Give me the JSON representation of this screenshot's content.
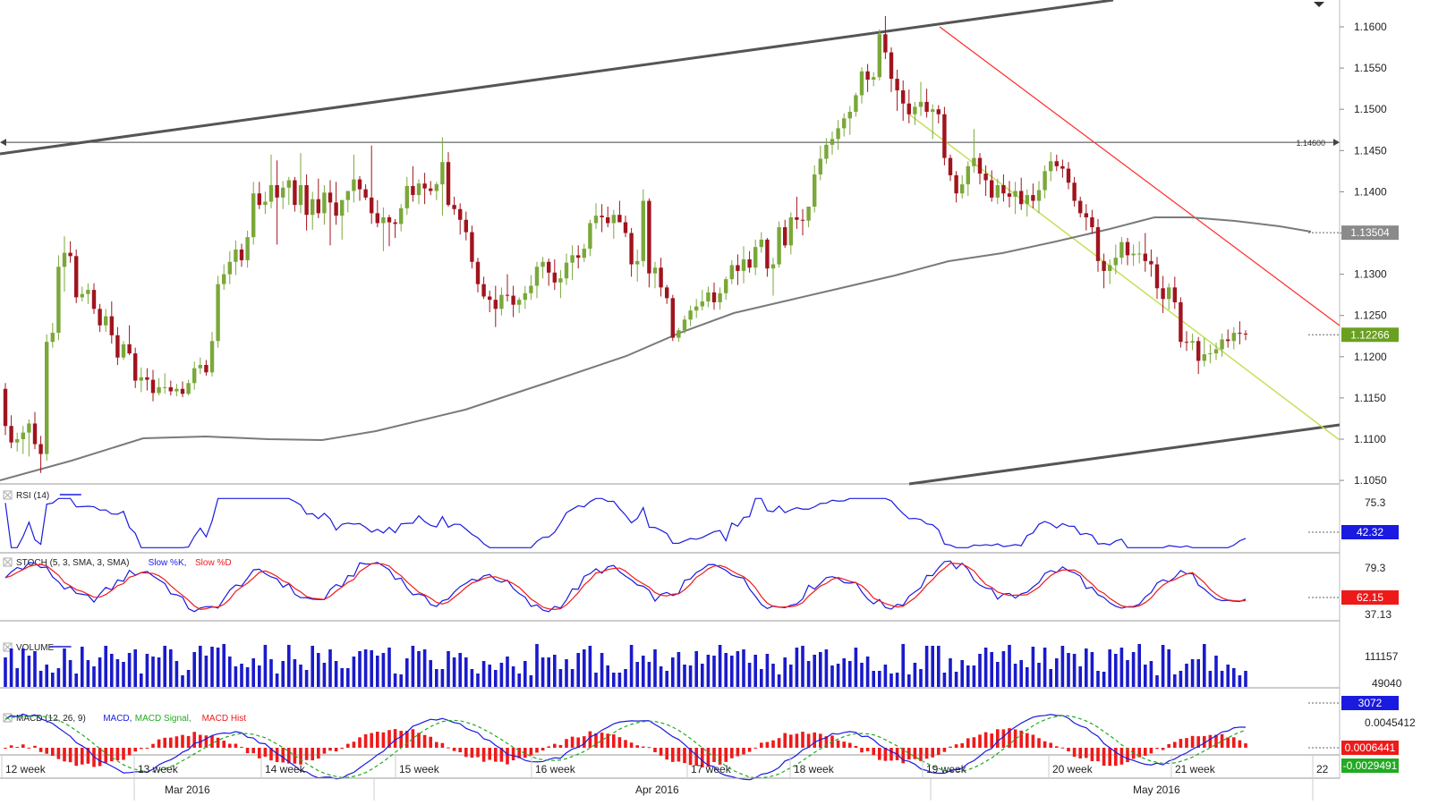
{
  "chart_data": {
    "type": "candlestick",
    "symbol": "",
    "colors": {
      "up": "#7aa83a",
      "down": "#a0141e",
      "ma": "#7a7a7a",
      "channel": "#555555",
      "red_trend": "#ff2a2a",
      "yellow_trend": "#c6df5a",
      "rsi": "#1a1ae0",
      "stoch_k": "#1a1ae0",
      "stoch_d": "#ee1a1a",
      "volume": "#1a1acc",
      "macd": "#1a1ae0",
      "macd_signal": "#22aa22",
      "macd_hist": "#ee1a1a",
      "last_price_bg": "#6aa020",
      "ma_label_bg": "#8a8a8a",
      "rsi_label_bg": "#1a1ae0",
      "stoch_label_bg": "#ee1a1a",
      "volume_label_bg": "#1a1ae0",
      "macd_label_bg": "#ee1a1a",
      "macd_signal_label_bg": "#22aa22"
    },
    "price_axis": {
      "ticks": [
        "1.1600",
        "1.1550",
        "1.1500",
        "1.1450",
        "1.1400",
        "1.1350",
        "1.1300",
        "1.1250",
        "1.1200",
        "1.1150",
        "1.1100",
        "1.1050"
      ],
      "ylim": [
        1.1042,
        1.1615
      ]
    },
    "horizontal_level": {
      "value": 1.146,
      "label": "1.14600"
    },
    "labels": {
      "ma": "1.13504",
      "last_price": "1.12266"
    },
    "candles": [
      [
        1.1161,
        1.1168,
        1.1105,
        1.1116
      ],
      [
        1.1116,
        1.1129,
        1.1089,
        1.1096
      ],
      [
        1.1096,
        1.1108,
        1.1085,
        1.11
      ],
      [
        1.11,
        1.1116,
        1.1082,
        1.1108
      ],
      [
        1.1108,
        1.1124,
        1.1079,
        1.1119
      ],
      [
        1.1119,
        1.1133,
        1.1088,
        1.1094
      ],
      [
        1.1094,
        1.1104,
        1.1059,
        1.1082
      ],
      [
        1.1082,
        1.1227,
        1.1074,
        1.1218
      ],
      [
        1.1218,
        1.1241,
        1.1211,
        1.1229
      ],
      [
        1.1229,
        1.1323,
        1.122,
        1.1309
      ],
      [
        1.1309,
        1.1346,
        1.1279,
        1.1326
      ],
      [
        1.1326,
        1.134,
        1.1314,
        1.1322
      ],
      [
        1.1322,
        1.133,
        1.1265,
        1.1272
      ],
      [
        1.1272,
        1.1285,
        1.1267,
        1.1276
      ],
      [
        1.1276,
        1.1289,
        1.1264,
        1.1281
      ],
      [
        1.1281,
        1.1289,
        1.1252,
        1.1258
      ],
      [
        1.1258,
        1.1264,
        1.123,
        1.1238
      ],
      [
        1.1238,
        1.1258,
        1.123,
        1.1249
      ],
      [
        1.1249,
        1.1267,
        1.1216,
        1.1226
      ],
      [
        1.1226,
        1.1236,
        1.119,
        1.1199
      ],
      [
        1.1199,
        1.1219,
        1.1196,
        1.1215
      ],
      [
        1.1215,
        1.1238,
        1.1202,
        1.1204
      ],
      [
        1.1204,
        1.1211,
        1.1162,
        1.1171
      ],
      [
        1.1171,
        1.1187,
        1.1157,
        1.1175
      ],
      [
        1.1175,
        1.1186,
        1.1159,
        1.1172
      ],
      [
        1.1172,
        1.1184,
        1.1146,
        1.1156
      ],
      [
        1.1156,
        1.1174,
        1.1153,
        1.1163
      ],
      [
        1.1163,
        1.118,
        1.1155,
        1.1163
      ],
      [
        1.1163,
        1.1171,
        1.1153,
        1.1158
      ],
      [
        1.1158,
        1.1167,
        1.1152,
        1.1161
      ],
      [
        1.1161,
        1.117,
        1.1151,
        1.1155
      ],
      [
        1.1155,
        1.1172,
        1.1153,
        1.1168
      ],
      [
        1.1168,
        1.1194,
        1.116,
        1.1186
      ],
      [
        1.1186,
        1.1199,
        1.1179,
        1.119
      ],
      [
        1.119,
        1.1196,
        1.1177,
        1.1181
      ],
      [
        1.1181,
        1.123,
        1.1176,
        1.1219
      ],
      [
        1.1219,
        1.1298,
        1.1211,
        1.1288
      ],
      [
        1.1288,
        1.1312,
        1.1281,
        1.13
      ],
      [
        1.13,
        1.1328,
        1.1288,
        1.1315
      ],
      [
        1.1315,
        1.1341,
        1.1299,
        1.133
      ],
      [
        1.133,
        1.1337,
        1.1309,
        1.1317
      ],
      [
        1.1317,
        1.1353,
        1.1308,
        1.1345
      ],
      [
        1.1345,
        1.1412,
        1.1336,
        1.1398
      ],
      [
        1.1398,
        1.1412,
        1.1379,
        1.1384
      ],
      [
        1.1384,
        1.14,
        1.1373,
        1.1388
      ],
      [
        1.1388,
        1.1445,
        1.138,
        1.1408
      ],
      [
        1.1408,
        1.1438,
        1.1336,
        1.1393
      ],
      [
        1.1393,
        1.1413,
        1.1379,
        1.1405
      ],
      [
        1.1405,
        1.1418,
        1.1384,
        1.1414
      ],
      [
        1.1414,
        1.1418,
        1.1376,
        1.1384
      ],
      [
        1.1384,
        1.1447,
        1.1374,
        1.1408
      ],
      [
        1.1408,
        1.1421,
        1.1353,
        1.1372
      ],
      [
        1.1372,
        1.14,
        1.1354,
        1.1391
      ],
      [
        1.1391,
        1.1416,
        1.1368,
        1.1374
      ],
      [
        1.1374,
        1.1408,
        1.136,
        1.1399
      ],
      [
        1.1399,
        1.1414,
        1.1335,
        1.1387
      ],
      [
        1.1387,
        1.1412,
        1.136,
        1.1371
      ],
      [
        1.1371,
        1.139,
        1.1342,
        1.139
      ],
      [
        1.139,
        1.1401,
        1.1375,
        1.1401
      ],
      [
        1.1401,
        1.1445,
        1.1387,
        1.1415
      ],
      [
        1.1415,
        1.1419,
        1.1389,
        1.1403
      ],
      [
        1.1403,
        1.1409,
        1.139,
        1.1393
      ],
      [
        1.1393,
        1.1456,
        1.1361,
        1.1374
      ],
      [
        1.1374,
        1.139,
        1.1357,
        1.1362
      ],
      [
        1.1362,
        1.1381,
        1.1328,
        1.1369
      ],
      [
        1.1369,
        1.1372,
        1.1334,
        1.1363
      ],
      [
        1.1363,
        1.1367,
        1.1344,
        1.1361
      ],
      [
        1.1361,
        1.1385,
        1.1352,
        1.138
      ],
      [
        1.138,
        1.1418,
        1.1372,
        1.1407
      ],
      [
        1.1407,
        1.1431,
        1.1388,
        1.1396
      ],
      [
        1.1396,
        1.1415,
        1.1385,
        1.141
      ],
      [
        1.141,
        1.1423,
        1.1385,
        1.1404
      ],
      [
        1.1404,
        1.1413,
        1.1396,
        1.1401
      ],
      [
        1.1401,
        1.1412,
        1.139,
        1.1409
      ],
      [
        1.1409,
        1.1466,
        1.1371,
        1.1436
      ],
      [
        1.1436,
        1.1448,
        1.1382,
        1.1384
      ],
      [
        1.1384,
        1.1394,
        1.1372,
        1.1379
      ],
      [
        1.1379,
        1.1386,
        1.1348,
        1.1366
      ],
      [
        1.1366,
        1.1376,
        1.1341,
        1.1351
      ],
      [
        1.1351,
        1.1359,
        1.1307,
        1.1315
      ],
      [
        1.1315,
        1.132,
        1.1278,
        1.1288
      ],
      [
        1.1288,
        1.1297,
        1.127,
        1.1273
      ],
      [
        1.1273,
        1.128,
        1.1254,
        1.1269
      ],
      [
        1.1269,
        1.1286,
        1.1236,
        1.1258
      ],
      [
        1.1258,
        1.1284,
        1.125,
        1.1275
      ],
      [
        1.1275,
        1.13,
        1.1267,
        1.1274
      ],
      [
        1.1274,
        1.1286,
        1.1248,
        1.1263
      ],
      [
        1.1263,
        1.1272,
        1.1253,
        1.1269
      ],
      [
        1.1269,
        1.1286,
        1.1258,
        1.1277
      ],
      [
        1.1277,
        1.1299,
        1.1269,
        1.1286
      ],
      [
        1.1286,
        1.1315,
        1.1271,
        1.1309
      ],
      [
        1.1309,
        1.1321,
        1.1295,
        1.1315
      ],
      [
        1.1315,
        1.1319,
        1.1286,
        1.1302
      ],
      [
        1.1302,
        1.1318,
        1.1281,
        1.129
      ],
      [
        1.129,
        1.1305,
        1.1271,
        1.1295
      ],
      [
        1.1295,
        1.1325,
        1.1287,
        1.1314
      ],
      [
        1.1314,
        1.1335,
        1.1293,
        1.1323
      ],
      [
        1.1323,
        1.1335,
        1.1307,
        1.132
      ],
      [
        1.132,
        1.1337,
        1.1315,
        1.1331
      ],
      [
        1.1331,
        1.1366,
        1.1322,
        1.1362
      ],
      [
        1.1362,
        1.1386,
        1.1355,
        1.1371
      ],
      [
        1.1371,
        1.1385,
        1.1351,
        1.1369
      ],
      [
        1.1369,
        1.1382,
        1.1357,
        1.1362
      ],
      [
        1.1362,
        1.1378,
        1.1343,
        1.1372
      ],
      [
        1.1372,
        1.1389,
        1.1364,
        1.1363
      ],
      [
        1.1363,
        1.1371,
        1.1345,
        1.135
      ],
      [
        1.135,
        1.1356,
        1.1297,
        1.1312
      ],
      [
        1.1312,
        1.133,
        1.1291,
        1.1316
      ],
      [
        1.1316,
        1.1403,
        1.1309,
        1.1389
      ],
      [
        1.1389,
        1.1392,
        1.1284,
        1.1301
      ],
      [
        1.1301,
        1.1315,
        1.1283,
        1.1308
      ],
      [
        1.1308,
        1.132,
        1.1273,
        1.1284
      ],
      [
        1.1284,
        1.1287,
        1.1264,
        1.1271
      ],
      [
        1.1271,
        1.1275,
        1.1219,
        1.1223
      ],
      [
        1.1223,
        1.1235,
        1.1218,
        1.1232
      ],
      [
        1.1232,
        1.125,
        1.1228,
        1.1245
      ],
      [
        1.1245,
        1.1262,
        1.1237,
        1.1256
      ],
      [
        1.1256,
        1.127,
        1.1247,
        1.1261
      ],
      [
        1.1261,
        1.1281,
        1.1256,
        1.1267
      ],
      [
        1.1267,
        1.1285,
        1.126,
        1.1278
      ],
      [
        1.1278,
        1.129,
        1.1257,
        1.1266
      ],
      [
        1.1266,
        1.1284,
        1.1257,
        1.1277
      ],
      [
        1.1277,
        1.1297,
        1.1269,
        1.1294
      ],
      [
        1.1294,
        1.1317,
        1.1288,
        1.1311
      ],
      [
        1.1311,
        1.1324,
        1.1287,
        1.1304
      ],
      [
        1.1304,
        1.1334,
        1.1289,
        1.1318
      ],
      [
        1.1318,
        1.1328,
        1.1302,
        1.1308
      ],
      [
        1.1308,
        1.1342,
        1.1299,
        1.1333
      ],
      [
        1.1333,
        1.1351,
        1.1326,
        1.1342
      ],
      [
        1.1342,
        1.1344,
        1.1297,
        1.1307
      ],
      [
        1.1307,
        1.132,
        1.1274,
        1.1312
      ],
      [
        1.1312,
        1.1364,
        1.1308,
        1.1357
      ],
      [
        1.1357,
        1.1366,
        1.1332,
        1.1335
      ],
      [
        1.1335,
        1.1375,
        1.1324,
        1.1369
      ],
      [
        1.1369,
        1.1394,
        1.1355,
        1.1366
      ],
      [
        1.1366,
        1.1379,
        1.1347,
        1.1365
      ],
      [
        1.1365,
        1.1382,
        1.1357,
        1.1382
      ],
      [
        1.1382,
        1.1432,
        1.1375,
        1.1421
      ],
      [
        1.1421,
        1.1456,
        1.1414,
        1.144
      ],
      [
        1.144,
        1.1465,
        1.1434,
        1.1457
      ],
      [
        1.1457,
        1.1473,
        1.1445,
        1.1464
      ],
      [
        1.1464,
        1.1487,
        1.1451,
        1.1477
      ],
      [
        1.1477,
        1.1495,
        1.1467,
        1.1489
      ],
      [
        1.1489,
        1.1504,
        1.1469,
        1.1497
      ],
      [
        1.1497,
        1.152,
        1.1491,
        1.1517
      ],
      [
        1.1517,
        1.1551,
        1.1507,
        1.1546
      ],
      [
        1.1546,
        1.1555,
        1.1521,
        1.1536
      ],
      [
        1.1536,
        1.1545,
        1.1528,
        1.1539
      ],
      [
        1.1539,
        1.1597,
        1.1535,
        1.1591
      ],
      [
        1.1591,
        1.1613,
        1.1561,
        1.1569
      ],
      [
        1.1569,
        1.1575,
        1.1521,
        1.1537
      ],
      [
        1.1537,
        1.1548,
        1.1498,
        1.1523
      ],
      [
        1.1523,
        1.1535,
        1.1486,
        1.1507
      ],
      [
        1.1507,
        1.1524,
        1.1483,
        1.1494
      ],
      [
        1.1494,
        1.1509,
        1.1481,
        1.1503
      ],
      [
        1.1503,
        1.1533,
        1.1492,
        1.1509
      ],
      [
        1.1509,
        1.1525,
        1.149,
        1.1497
      ],
      [
        1.1497,
        1.1506,
        1.1464,
        1.15
      ],
      [
        1.15,
        1.1505,
        1.1483,
        1.1494
      ],
      [
        1.1494,
        1.1503,
        1.1432,
        1.1441
      ],
      [
        1.1441,
        1.1445,
        1.1413,
        1.142
      ],
      [
        1.142,
        1.1425,
        1.1387,
        1.1398
      ],
      [
        1.1398,
        1.142,
        1.1392,
        1.1409
      ],
      [
        1.1409,
        1.1437,
        1.1395,
        1.1431
      ],
      [
        1.1431,
        1.1476,
        1.1423,
        1.1441
      ],
      [
        1.1441,
        1.1447,
        1.1409,
        1.1422
      ],
      [
        1.1422,
        1.1432,
        1.1395,
        1.1414
      ],
      [
        1.1414,
        1.1426,
        1.1388,
        1.1393
      ],
      [
        1.1393,
        1.1416,
        1.1385,
        1.1408
      ],
      [
        1.1408,
        1.1421,
        1.1388,
        1.1398
      ],
      [
        1.1398,
        1.1413,
        1.1381,
        1.1394
      ],
      [
        1.1394,
        1.1412,
        1.1373,
        1.1401
      ],
      [
        1.1401,
        1.1417,
        1.1378,
        1.1385
      ],
      [
        1.1385,
        1.1403,
        1.137,
        1.1396
      ],
      [
        1.1396,
        1.141,
        1.138,
        1.1389
      ],
      [
        1.1389,
        1.1413,
        1.1374,
        1.1402
      ],
      [
        1.1402,
        1.1432,
        1.1392,
        1.1425
      ],
      [
        1.1425,
        1.1448,
        1.1413,
        1.1437
      ],
      [
        1.1437,
        1.1445,
        1.1425,
        1.1431
      ],
      [
        1.1431,
        1.1439,
        1.1417,
        1.1428
      ],
      [
        1.1428,
        1.1436,
        1.1403,
        1.1411
      ],
      [
        1.1411,
        1.1418,
        1.1382,
        1.1389
      ],
      [
        1.1389,
        1.1394,
        1.1369,
        1.1374
      ],
      [
        1.1374,
        1.1385,
        1.1353,
        1.1369
      ],
      [
        1.1369,
        1.1378,
        1.1349,
        1.1357
      ],
      [
        1.1357,
        1.1367,
        1.1303,
        1.1316
      ],
      [
        1.1316,
        1.1325,
        1.1283,
        1.1304
      ],
      [
        1.1304,
        1.1318,
        1.1288,
        1.1311
      ],
      [
        1.1311,
        1.1336,
        1.13,
        1.132
      ],
      [
        1.132,
        1.1345,
        1.1312,
        1.1339
      ],
      [
        1.1339,
        1.1344,
        1.1311,
        1.1323
      ],
      [
        1.1323,
        1.1336,
        1.131,
        1.1325
      ],
      [
        1.1325,
        1.134,
        1.1313,
        1.1325
      ],
      [
        1.1325,
        1.135,
        1.1303,
        1.1316
      ],
      [
        1.1316,
        1.133,
        1.1297,
        1.1312
      ],
      [
        1.1312,
        1.1321,
        1.127,
        1.1283
      ],
      [
        1.1283,
        1.1298,
        1.1253,
        1.127
      ],
      [
        1.127,
        1.1289,
        1.1257,
        1.1284
      ],
      [
        1.1284,
        1.1297,
        1.1258,
        1.1266
      ],
      [
        1.1266,
        1.1272,
        1.1211,
        1.1218
      ],
      [
        1.1218,
        1.1231,
        1.1207,
        1.1217
      ],
      [
        1.1217,
        1.1228,
        1.1208,
        1.1219
      ],
      [
        1.1219,
        1.1224,
        1.1179,
        1.1195
      ],
      [
        1.1195,
        1.1223,
        1.1188,
        1.1203
      ],
      [
        1.1203,
        1.1215,
        1.1192,
        1.1204
      ],
      [
        1.1204,
        1.1217,
        1.1196,
        1.1209
      ],
      [
        1.1209,
        1.1228,
        1.12,
        1.1221
      ],
      [
        1.1221,
        1.1233,
        1.1211,
        1.1219
      ],
      [
        1.1219,
        1.1236,
        1.1209,
        1.1229
      ],
      [
        1.1229,
        1.1243,
        1.1215,
        1.1228
      ],
      [
        1.1228,
        1.1232,
        1.122,
        1.1227
      ]
    ],
    "ma_label": "1.13504",
    "indicators": [
      {
        "name": "RSI (14)",
        "axis_ticks": [
          "75.3"
        ],
        "current": "42.32"
      },
      {
        "name": "STOCH (5, 3, SMA, 3, SMA)",
        "series": [
          "Slow %K",
          "Slow %D"
        ],
        "axis_ticks": [
          "79.3",
          "37.13"
        ],
        "current": "62.15"
      },
      {
        "name": "VOLUME",
        "axis_ticks": [
          "111157",
          "49040"
        ],
        "current": "3072"
      },
      {
        "name": "MACD (12, 26, 9)",
        "series": [
          "MACD",
          "MACD Signal",
          "MACD Hist"
        ],
        "axis_ticks": [
          "0.0045412"
        ],
        "current": [
          "0.0006441",
          "-0.0029491"
        ]
      }
    ],
    "time_axis": {
      "weeks": [
        "12 week",
        "13 week",
        "14 week",
        "15 week",
        "16 week",
        "17 week",
        "18 week",
        "19 week",
        "20 week",
        "21 week",
        "22"
      ],
      "months": [
        "Mar 2016",
        "Apr 2016",
        "May 2016"
      ]
    }
  },
  "ui": {
    "rsi_title": "RSI (14)",
    "stoch_title": "STOCH (5, 3, SMA, 3, SMA)",
    "stoch_k": "Slow %K",
    "stoch_d": "Slow %D",
    "volume_title": "VOLUME",
    "macd_title": "MACD (12, 26, 9)",
    "macd_line": "MACD",
    "macd_signal": "MACD Signal",
    "macd_hist": "MACD Hist"
  }
}
